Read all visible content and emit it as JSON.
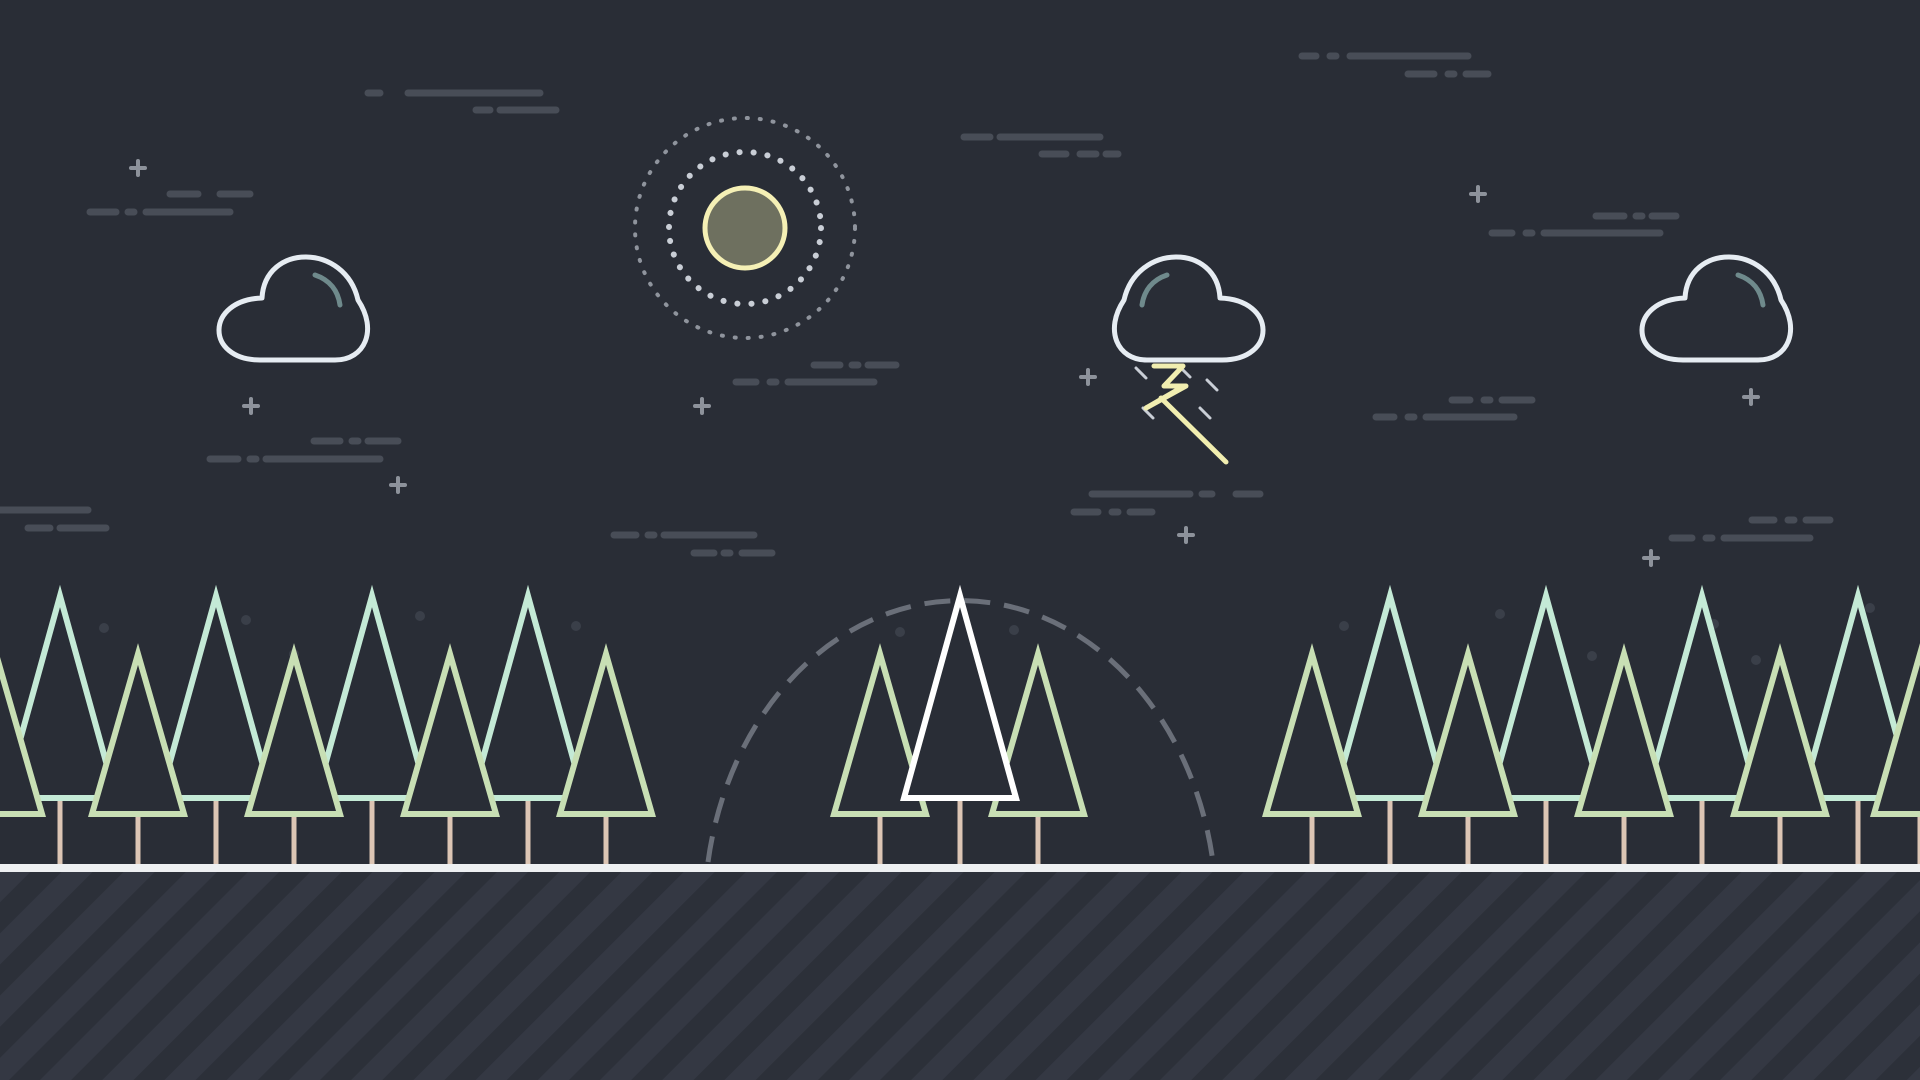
{
  "colors": {
    "background": "#292d36",
    "ground": "#2c3039",
    "ground_stripe": "#343843",
    "horizon_line": "#eef0f2",
    "cloud_outline": "#e6ecf2",
    "cloud_highlight": "#6f8a8c",
    "sun_fill": "#6e705f",
    "sun_outline": "#f5f0b5",
    "sun_rays": "#a9aeb7",
    "lightning": "#f1eeb0",
    "rain": "#c9ced6",
    "dash_marks": "#484d57",
    "stars": "#8d929b",
    "dashed_arc": "#6a6f79",
    "tree_mint": "#c4ead6",
    "tree_sage": "#c8dfb4",
    "tree_white": "#ffffff",
    "tree_trunk": "#dcc5b4"
  },
  "scene": {
    "icons": [
      "cloud-icon",
      "sun-icon",
      "storm-cloud-icon",
      "lightning-icon",
      "cloud-icon",
      "pine-tree-icon",
      "star-icon"
    ]
  }
}
